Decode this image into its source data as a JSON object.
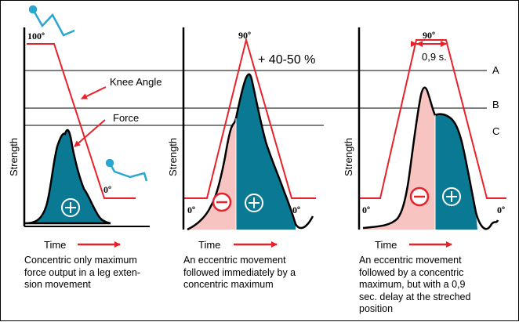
{
  "colors": {
    "red": "#e8222a",
    "teal": "#0a7a94",
    "pink": "#f7c4c2",
    "blue_icon": "#2aa7cf",
    "black": "#000000"
  },
  "panels": [
    {
      "top_angle": "100º",
      "bottom_angle": "0º",
      "y_label": "Strength",
      "x_label": "Time",
      "annotation_knee": "Knee Angle",
      "annotation_force": "Force",
      "caption": "Concentric only maximum force output in a leg extension movement",
      "caption_lines": [
        "Concentric only maximum",
        "force output in a leg exten-",
        "sion movement"
      ]
    },
    {
      "top_angle": "90º",
      "bottom_left_angle": "0º",
      "bottom_right_angle": "0º",
      "gain": "+ 40-50 %",
      "y_label": "Strength",
      "x_label": "Time",
      "caption_lines": [
        "An eccentric movement",
        "followed immediately by a",
        "concentric maximum"
      ]
    },
    {
      "top_angle": "90º",
      "delay": "0,9 s.",
      "bottom_left_angle": "0º",
      "bottom_right_angle": "0º",
      "level_labels": [
        "A",
        "B",
        "C"
      ],
      "y_label": "Strength",
      "x_label": "Time",
      "caption_lines": [
        "An eccentric movement",
        "followed by a concentric",
        "maximum, but with a 0,9",
        "sec. delay at the streched",
        "position"
      ]
    }
  ]
}
